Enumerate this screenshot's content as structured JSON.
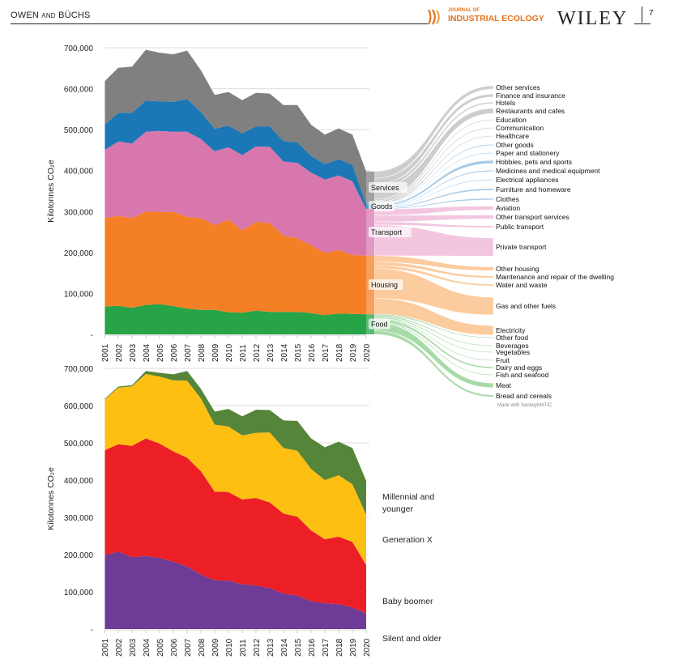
{
  "header": {
    "authors_main": "OWEN",
    "authors_and": "AND",
    "authors_second": "BÜCHS",
    "journal_line1": "JOURNAL OF",
    "journal_line2": "INDUSTRIAL ECOLOGY",
    "publisher": "WILEY",
    "page_number": "7"
  },
  "chart_data": [
    {
      "type": "area",
      "title": "",
      "xlabel": "",
      "ylabel": "Kilotonnes CO₂e",
      "ylim": [
        0,
        700000
      ],
      "yticks": [
        0,
        100000,
        200000,
        300000,
        400000,
        500000,
        600000,
        700000
      ],
      "ytick_labels": [
        "-",
        "100,000",
        "200,000",
        "300,000",
        "400,000",
        "500,000",
        "600,000",
        "700,000"
      ],
      "grid": true,
      "stacked": true,
      "x": [
        "2001",
        "2002",
        "2003",
        "2004",
        "2005",
        "2006",
        "2007",
        "2008",
        "2009",
        "2010",
        "2011",
        "2012",
        "2013",
        "2014",
        "2015",
        "2016",
        "2017",
        "2018",
        "2019",
        "2020"
      ],
      "series": [
        {
          "name": "Food",
          "color": "#27a348",
          "values": [
            68000,
            70000,
            65000,
            72000,
            74000,
            69000,
            63000,
            60000,
            60000,
            54000,
            53000,
            58000,
            55000,
            55000,
            55000,
            52000,
            47000,
            51000,
            50000,
            49000
          ]
        },
        {
          "name": "Housing",
          "color": "#f57f24",
          "values": [
            216000,
            219000,
            219000,
            228000,
            225000,
            230000,
            224000,
            224000,
            207000,
            226000,
            201000,
            216000,
            217000,
            186000,
            180000,
            166000,
            152000,
            155000,
            144000,
            143000
          ]
        },
        {
          "name": "Transport",
          "color": "#d877ae",
          "values": [
            166000,
            182000,
            182000,
            195000,
            198000,
            196000,
            208000,
            193000,
            180000,
            177000,
            184000,
            185000,
            186000,
            181000,
            184000,
            177000,
            179000,
            182000,
            180000,
            114000
          ]
        },
        {
          "name": "Goods",
          "color": "#1b77b5",
          "values": [
            62000,
            70000,
            75000,
            76000,
            72000,
            73000,
            80000,
            66000,
            55000,
            53000,
            53000,
            49000,
            50000,
            50000,
            50000,
            41000,
            38000,
            40000,
            40000,
            12000
          ]
        },
        {
          "name": "Services",
          "color": "#808080",
          "values": [
            106000,
            110000,
            113000,
            124000,
            119000,
            116000,
            118000,
            102000,
            83000,
            82000,
            81000,
            82000,
            80000,
            88000,
            91000,
            76000,
            72000,
            75000,
            74000,
            80000
          ]
        }
      ],
      "totals_approx": [
        618000,
        651000,
        654000,
        695000,
        688000,
        684000,
        693000,
        645000,
        585000,
        592000,
        572000,
        590000,
        588000,
        560000,
        560000,
        512000,
        488000,
        503000,
        488000,
        398000
      ]
    },
    {
      "type": "sankey",
      "title": "",
      "year": "2020",
      "credit": "Made with SankeyMATIC",
      "sources": [
        {
          "name": "Services",
          "color": "#808080",
          "link_color": "#c8c8c8",
          "value": 80000
        },
        {
          "name": "Goods",
          "color": "#1b77b5",
          "link_color": "#9cc4e4",
          "value": 12000
        },
        {
          "name": "Transport",
          "color": "#d877ae",
          "link_color": "#f2c0db",
          "value": 114000
        },
        {
          "name": "Housing",
          "color": "#f57f24",
          "link_color": "#fcc594",
          "value": 143000
        },
        {
          "name": "Food",
          "color": "#27a348",
          "link_color": "#9ed69e",
          "value": 49000
        }
      ],
      "targets": [
        {
          "name": "Other services",
          "source": "Services",
          "weight": 2.5
        },
        {
          "name": "Finance and insurance",
          "source": "Services",
          "weight": 2.2
        },
        {
          "name": "Hotels",
          "source": "Services",
          "weight": 1.2
        },
        {
          "name": "Restaurants and cafes",
          "source": "Services",
          "weight": 4.0
        },
        {
          "name": "Education",
          "source": "Services",
          "weight": 0.6
        },
        {
          "name": "Communication",
          "source": "Services",
          "weight": 0.6
        },
        {
          "name": "Healthcare",
          "source": "Services",
          "weight": 0.6
        },
        {
          "name": "Other goods",
          "source": "Goods",
          "weight": 0.8
        },
        {
          "name": "Paper and stationery",
          "source": "Goods",
          "weight": 0.5
        },
        {
          "name": "Hobbies, pets and sports",
          "source": "Goods",
          "weight": 2.4
        },
        {
          "name": "Medicines and medical equipment",
          "source": "Goods",
          "weight": 1.0
        },
        {
          "name": "Electrical appliances",
          "source": "Goods",
          "weight": 0.7
        },
        {
          "name": "Furniture and homeware",
          "source": "Goods",
          "weight": 1.4
        },
        {
          "name": "Clothes",
          "source": "Goods",
          "weight": 1.2
        },
        {
          "name": "Aviation",
          "source": "Transport",
          "weight": 3.0
        },
        {
          "name": "Other transport services",
          "source": "Transport",
          "weight": 3.0
        },
        {
          "name": "Public transport",
          "source": "Transport",
          "weight": 1.5
        },
        {
          "name": "Private transport",
          "source": "Transport",
          "weight": 14.5
        },
        {
          "name": "Other housing",
          "source": "Housing",
          "weight": 3.0
        },
        {
          "name": "Maintenance and repair of the dwelling",
          "source": "Housing",
          "weight": 1.6
        },
        {
          "name": "Water and waste",
          "source": "Housing",
          "weight": 1.4
        },
        {
          "name": "Gas and other fuels",
          "source": "Housing",
          "weight": 14.0
        },
        {
          "name": "Electricity",
          "source": "Housing",
          "weight": 7.5
        },
        {
          "name": "Other food",
          "source": "Food",
          "weight": 0.6
        },
        {
          "name": "Beverages",
          "source": "Food",
          "weight": 0.6
        },
        {
          "name": "Vegetables",
          "source": "Food",
          "weight": 0.5
        },
        {
          "name": "Fruit",
          "source": "Food",
          "weight": 0.4
        },
        {
          "name": "Dairy and eggs",
          "source": "Food",
          "weight": 1.2
        },
        {
          "name": "Fish and seafood",
          "source": "Food",
          "weight": 0.5
        },
        {
          "name": "Meat",
          "source": "Food",
          "weight": 3.6
        },
        {
          "name": "Bread and cereals",
          "source": "Food",
          "weight": 1.6
        }
      ]
    },
    {
      "type": "area",
      "title": "",
      "xlabel": "",
      "ylabel": "Kilotonnes CO₂e",
      "ylim": [
        0,
        700000
      ],
      "yticks": [
        0,
        100000,
        200000,
        300000,
        400000,
        500000,
        600000,
        700000
      ],
      "ytick_labels": [
        "-",
        "100,000",
        "200,000",
        "300,000",
        "400,000",
        "500,000",
        "600,000",
        "700,000"
      ],
      "grid": true,
      "stacked": true,
      "legend_position": "right",
      "x": [
        "2001",
        "2002",
        "2003",
        "2004",
        "2005",
        "2006",
        "2007",
        "2008",
        "2009",
        "2010",
        "2011",
        "2012",
        "2013",
        "2014",
        "2015",
        "2016",
        "2017",
        "2018",
        "2019",
        "2020"
      ],
      "series": [
        {
          "name": "Silent and older",
          "legend_label": "Silent and older",
          "color": "#6e3b96",
          "values": [
            198000,
            208000,
            193000,
            196000,
            191000,
            181000,
            168000,
            146000,
            131000,
            130000,
            120000,
            117000,
            110000,
            95000,
            90000,
            75000,
            69000,
            67000,
            58000,
            42000
          ]
        },
        {
          "name": "Baby boomer",
          "legend_label": "Baby boomer",
          "color": "#ec1f27",
          "values": [
            282000,
            288000,
            299000,
            316000,
            307000,
            296000,
            292000,
            278000,
            238000,
            238000,
            228000,
            235000,
            230000,
            215000,
            212000,
            190000,
            172000,
            181000,
            176000,
            130000
          ]
        },
        {
          "name": "Generation X",
          "legend_label": "Generation X",
          "color": "#fdbf12",
          "values": [
            136000,
            152000,
            160000,
            173000,
            180000,
            191000,
            207000,
            195000,
            180000,
            176000,
            172000,
            175000,
            188000,
            176000,
            177000,
            165000,
            159000,
            165000,
            155000,
            135000
          ]
        },
        {
          "name": "Millennial and younger",
          "legend_label": "Millennial and\nyounger",
          "color": "#558539",
          "values": [
            2000,
            3000,
            3000,
            8000,
            10000,
            16000,
            26000,
            26000,
            35000,
            47000,
            51000,
            62000,
            60000,
            74000,
            80000,
            82000,
            88000,
            90000,
            97000,
            91000
          ]
        }
      ]
    }
  ]
}
